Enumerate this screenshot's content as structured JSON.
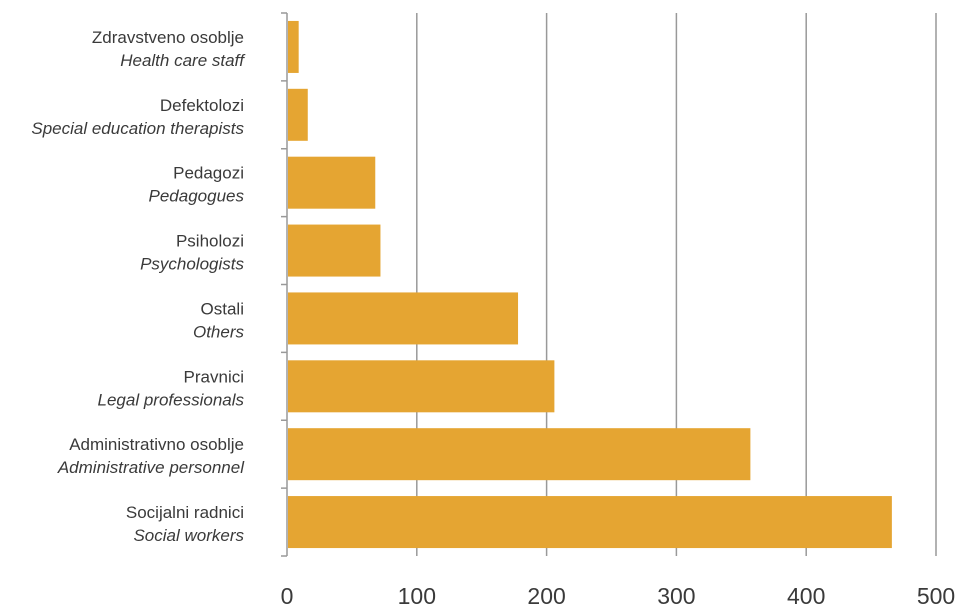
{
  "chart_data": {
    "type": "bar",
    "orientation": "horizontal",
    "categories": [
      {
        "label": "Zdravstveno osoblje",
        "sublabel": "Health care staff"
      },
      {
        "label": "Defektolozi",
        "sublabel": "Special education therapists"
      },
      {
        "label": "Pedagozi",
        "sublabel": "Pedagogues"
      },
      {
        "label": "Psiholozi",
        "sublabel": "Psychologists"
      },
      {
        "label": "Ostali",
        "sublabel": "Others"
      },
      {
        "label": "Pravnici",
        "sublabel": "Legal professionals"
      },
      {
        "label": "Administrativno osoblje",
        "sublabel": "Administrative personnel"
      },
      {
        "label": "Socijalni radnici",
        "sublabel": "Social workers"
      }
    ],
    "values": [
      9,
      16,
      68,
      72,
      178,
      206,
      357,
      466
    ],
    "xlim": [
      0,
      500
    ],
    "xticks": [
      "0",
      "100",
      "200",
      "300",
      "400",
      "500"
    ],
    "grid": true,
    "colors": {
      "bar": "#E5A532",
      "grid": "#999999",
      "axis": "#999999"
    }
  }
}
